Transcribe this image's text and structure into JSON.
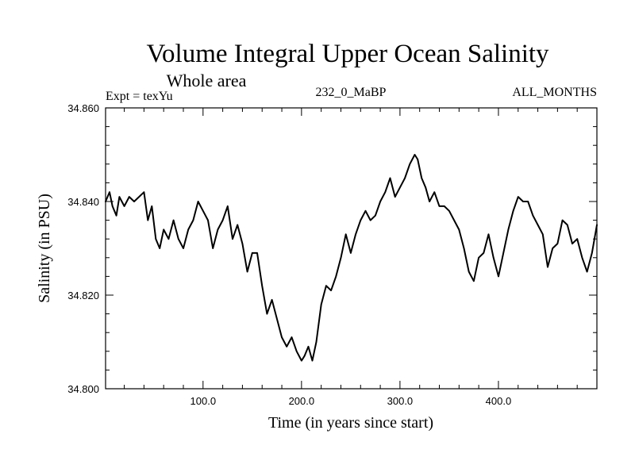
{
  "chart_data": {
    "type": "line",
    "title": "Volume Integral Upper Ocean Salinity",
    "subtitle": "Whole area",
    "experiment_label": "Expt = texYu",
    "run_label": "232_0_MaBP",
    "months_label": "ALL_MONTHS",
    "xlabel": "Time (in years since start)",
    "ylabel": "Salinity (in PSU)",
    "xlim": [
      1,
      500
    ],
    "ylim": [
      34.8,
      34.86
    ],
    "x_ticks": [
      100,
      200,
      300,
      400
    ],
    "x_tick_labels": [
      "100.0",
      "200.0",
      "300.0",
      "400.0"
    ],
    "y_ticks": [
      34.8,
      34.82,
      34.84,
      34.86
    ],
    "y_tick_labels": [
      "34.800",
      "34.820",
      "34.840",
      "34.860"
    ],
    "grid": false,
    "line_color": "#000000",
    "series": [
      {
        "x": [
          1,
          5,
          8,
          12,
          15,
          20,
          25,
          30,
          35,
          40,
          44,
          48,
          52,
          56,
          60,
          65,
          70,
          75,
          80,
          85,
          90,
          95,
          100,
          105,
          110,
          115,
          120,
          125,
          130,
          135,
          140,
          145,
          150,
          155,
          160,
          165,
          170,
          175,
          180,
          185,
          190,
          195,
          200,
          203,
          207,
          211,
          215,
          220,
          225,
          230,
          235,
          240,
          245,
          250,
          255,
          260,
          265,
          270,
          275,
          280,
          285,
          290,
          295,
          300,
          305,
          310,
          315,
          318,
          322,
          326,
          330,
          335,
          340,
          345,
          350,
          355,
          360,
          365,
          370,
          375,
          380,
          385,
          390,
          395,
          400,
          405,
          410,
          415,
          420,
          425,
          430,
          435,
          440,
          445,
          450,
          455,
          460,
          465,
          470,
          475,
          480,
          485,
          490,
          495,
          500
        ],
        "y": [
          34.84,
          34.842,
          34.839,
          34.837,
          34.841,
          34.839,
          34.841,
          34.84,
          34.841,
          34.842,
          34.836,
          34.839,
          34.832,
          34.83,
          34.834,
          34.832,
          34.836,
          34.832,
          34.83,
          34.834,
          34.836,
          34.84,
          34.838,
          34.836,
          34.83,
          34.834,
          34.836,
          34.839,
          34.832,
          34.835,
          34.831,
          34.825,
          34.829,
          34.829,
          34.822,
          34.816,
          34.819,
          34.815,
          34.811,
          34.809,
          34.811,
          34.808,
          34.806,
          34.807,
          34.809,
          34.806,
          34.81,
          34.818,
          34.822,
          34.821,
          34.824,
          34.828,
          34.833,
          34.829,
          34.833,
          34.836,
          34.838,
          34.836,
          34.837,
          34.84,
          34.842,
          34.845,
          34.841,
          34.843,
          34.845,
          34.848,
          34.85,
          34.849,
          34.845,
          34.843,
          34.84,
          34.842,
          34.839,
          34.839,
          34.838,
          34.836,
          34.834,
          34.83,
          34.825,
          34.823,
          34.828,
          34.829,
          34.833,
          34.828,
          34.824,
          34.829,
          34.834,
          34.838,
          34.841,
          34.84,
          34.84,
          34.837,
          34.835,
          34.833,
          34.826,
          34.83,
          34.831,
          34.836,
          34.835,
          34.831,
          34.832,
          34.828,
          34.825,
          34.829,
          34.835
        ]
      }
    ]
  }
}
